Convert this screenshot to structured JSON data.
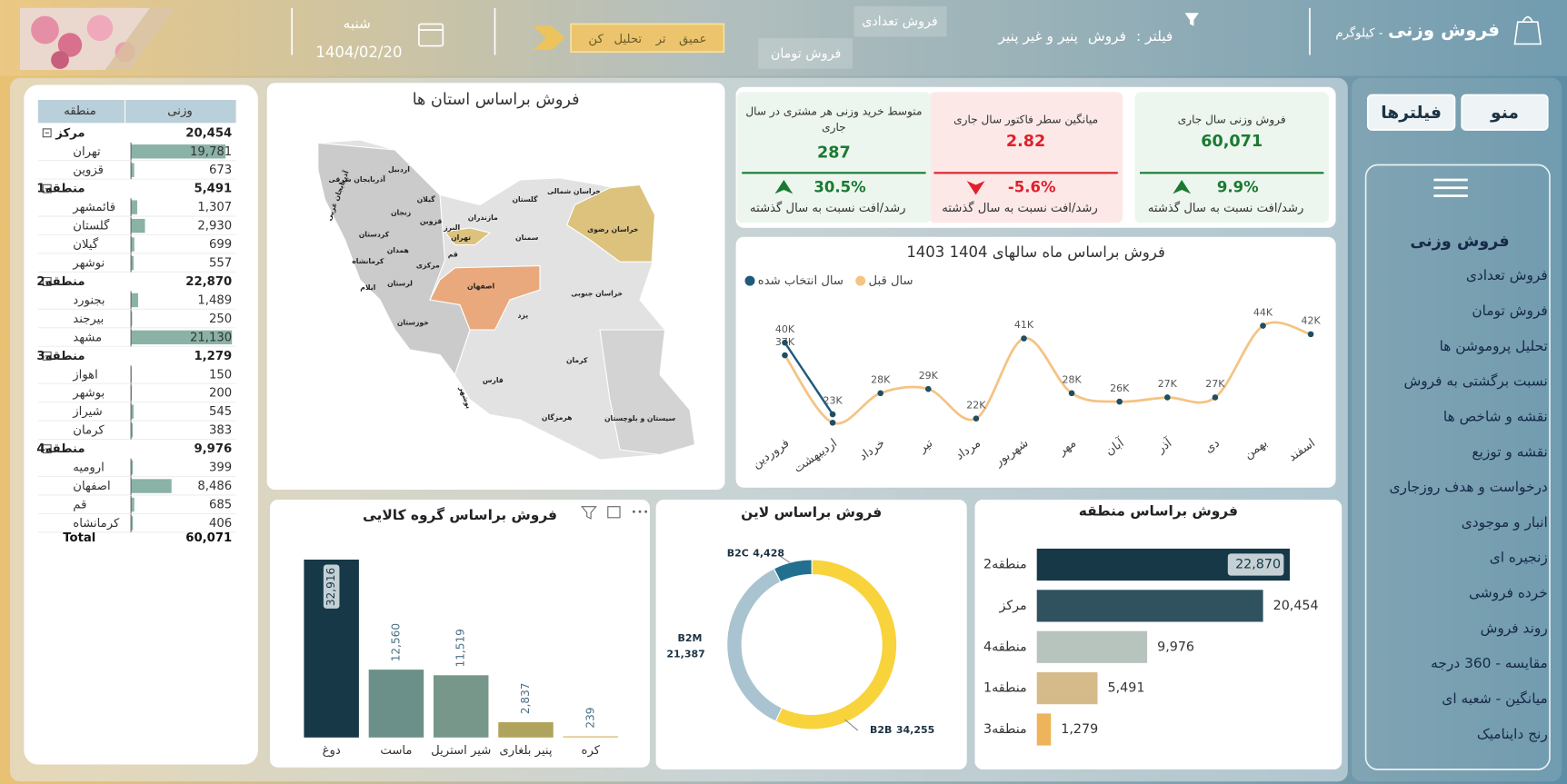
{
  "header": {
    "title": "فروش وزنی",
    "unit": "- کیلوگرم",
    "filter_label": "فیلتر :",
    "filter_values": [
      "فروش",
      "پنیر و غیر پنیر"
    ],
    "buttons": [
      "فروش تعدادی",
      "فروش تومان"
    ],
    "analysis": [
      "عمیق",
      "تر",
      "تحلیل",
      "کن"
    ],
    "weekday": "شنبه",
    "date": "1404/02/20"
  },
  "sidebar": {
    "buttons": [
      "منو",
      "فیلترها"
    ],
    "heading": "فروش وزنی",
    "items": [
      "فروش تعدادی",
      "فروش تومان",
      "تحلیل پروموشن ها",
      "نسبت برگشتی به فروش",
      "نقشه و شاخص ها",
      "نقشه و توزیع",
      "درخواست و هدف روزجاری",
      "انبار و موجودی",
      "زنجیره ای",
      "خرده فروشی",
      "روند فروش",
      "مقایسه - 360 درجه",
      "میانگین - شعبه ای",
      "رنج داینامیک"
    ]
  },
  "kpis": [
    {
      "title": "فروش وزنی سال جاری",
      "value": "60,071",
      "change": "9.9%",
      "footer": "رشد/افت نسبت به سال گذشته",
      "trend": "up",
      "color": "#1a7a32"
    },
    {
      "title": "میانگین سطر فاکتور سال جاری",
      "value": "2.82",
      "change": "-5.6%",
      "footer": "رشد/افت نسبت به سال گذشته",
      "trend": "down",
      "color": "#e0202a"
    },
    {
      "title": "متوسط خرید وزنی هر مشتری در سال جاری",
      "value": "287",
      "change": "30.5%",
      "footer": "رشد/افت نسبت به سال گذشته",
      "trend": "up",
      "color": "#1a7a32"
    }
  ],
  "table": {
    "headers": [
      "وزنی",
      "منطقه"
    ],
    "rows": [
      {
        "name": "مرکز",
        "level": 0,
        "value": {
          "value": 20454,
          "label": "20,454"
        }
      },
      {
        "name": "تهران",
        "level": 1,
        "value": {
          "value": 19781,
          "label": "19,781"
        }
      },
      {
        "name": "قزوین",
        "level": 1,
        "value": {
          "value": 673,
          "label": "673"
        }
      },
      {
        "name": "منطقه1",
        "level": 0,
        "value": {
          "value": 5491,
          "label": "5,491"
        }
      },
      {
        "name": "قائمشهر",
        "level": 1,
        "value": {
          "value": 1307,
          "label": "1,307"
        }
      },
      {
        "name": "گلستان",
        "level": 1,
        "value": {
          "value": 2930,
          "label": "2,930"
        }
      },
      {
        "name": "گیلان",
        "level": 1,
        "value": {
          "value": 699,
          "label": "699"
        }
      },
      {
        "name": "نوشهر",
        "level": 1,
        "value": {
          "value": 557,
          "label": "557"
        }
      },
      {
        "name": "منطقه2",
        "level": 0,
        "value": {
          "value": 22870,
          "label": "22,870"
        }
      },
      {
        "name": "بجنورد",
        "level": 1,
        "value": {
          "value": 1489,
          "label": "1,489"
        }
      },
      {
        "name": "بیرجند",
        "level": 1,
        "value": {
          "value": 250,
          "label": "250"
        }
      },
      {
        "name": "مشهد",
        "level": 1,
        "value": {
          "value": 21130,
          "label": "21,130"
        }
      },
      {
        "name": "منطقه3",
        "level": 0,
        "value": {
          "value": 1279,
          "label": "1,279"
        }
      },
      {
        "name": "اهواز",
        "level": 1,
        "value": {
          "value": 150,
          "label": "150"
        }
      },
      {
        "name": "بوشهر",
        "level": 1,
        "value": {
          "value": 200,
          "label": "200"
        }
      },
      {
        "name": "شیراز",
        "level": 1,
        "value": {
          "value": 545,
          "label": "545"
        }
      },
      {
        "name": "کرمان",
        "level": 1,
        "value": {
          "value": 383,
          "label": "383"
        }
      },
      {
        "name": "منطقه4",
        "level": 0,
        "value": {
          "value": 9976,
          "label": "9,976"
        }
      },
      {
        "name": "ارومیه",
        "level": 1,
        "value": {
          "value": 399,
          "label": "399"
        }
      },
      {
        "name": "اصفهان",
        "level": 1,
        "value": {
          "value": 8486,
          "label": "8,486"
        }
      },
      {
        "name": "قم",
        "level": 1,
        "value": {
          "value": 685,
          "label": "685"
        }
      },
      {
        "name": "کرمانشاه",
        "level": 1,
        "value": {
          "value": 406,
          "label": "406"
        }
      }
    ],
    "total": {
      "name": "Total",
      "value": {
        "value": 60071,
        "label": "60,071"
      }
    }
  },
  "map": {
    "title": "فروش براساس استان ها",
    "provinces": [
      "آذربایجان شرقی",
      "آذربایجان غربی",
      "اردبیل",
      "گیلان",
      "مازندران",
      "گلستان",
      "خراسان شمالی",
      "خراسان رضوی",
      "زنجان",
      "قزوین",
      "البرز",
      "تهران",
      "سمنان",
      "کردستان",
      "همدان",
      "قم",
      "مرکزی",
      "کرمانشاه",
      "ایلام",
      "لرستان",
      "اصفهان",
      "خراسان جنوبی",
      "یزد",
      "خوزستان",
      "فارس",
      "بوشهر",
      "کرمان",
      "هرمزگان",
      "سیستان و بلوچستان"
    ]
  },
  "chart_data": [
    {
      "type": "line",
      "title": "فروش براساس ماه سالهای 1404 1403",
      "categories": [
        "فروردین",
        "اردیبهشت",
        "خرداد",
        "تیر",
        "مرداد",
        "شهریور",
        "مهر",
        "آبان",
        "آذر",
        "دی",
        "بهمن",
        "اسفند"
      ],
      "series": [
        {
          "name": "سال انتخاب شده",
          "color": "#1f5a7a",
          "values": [
            40000,
            23000,
            null,
            null,
            null,
            null,
            null,
            null,
            null,
            null,
            null,
            null
          ],
          "value_labels": [
            "40K",
            "23K",
            null,
            null,
            null,
            null,
            null,
            null,
            null,
            null,
            null,
            null
          ]
        },
        {
          "name": "سال قبل",
          "color": "#f5c383",
          "values": [
            37000,
            21000,
            28000,
            29000,
            22000,
            41000,
            28000,
            26000,
            27000,
            27000,
            44000,
            42000
          ],
          "value_labels": [
            "37K",
            null,
            "28K",
            "29K",
            "22K",
            "41K",
            "28K",
            "26K",
            "27K",
            "27K",
            "44K",
            "42K"
          ]
        }
      ],
      "legend": "top-left"
    },
    {
      "type": "donut",
      "title": "فروش براساس لاین",
      "categories": [
        "B2B",
        "B2M",
        "B2C"
      ],
      "values": [
        34255,
        21387,
        4428
      ],
      "value_labels": [
        "34,255",
        "21,387",
        "4,428"
      ],
      "colors": [
        "#f9d33c",
        "#a9c4d0",
        "#236f90"
      ]
    },
    {
      "type": "hbar",
      "title": "فروش براساس منطقه",
      "categories": [
        "منطقه2",
        "مرکز",
        "منطقه4",
        "منطقه1",
        "منطقه3"
      ],
      "values": [
        22870,
        20454,
        9976,
        5491,
        1279
      ],
      "value_labels": [
        "22,870",
        "20,454",
        "9,976",
        "5,491",
        "1,279"
      ],
      "colors": [
        "#163847",
        "#30525e",
        "#b7c4bd",
        "#d5bb8a",
        "#eeb45c"
      ]
    },
    {
      "type": "bar",
      "title": "فروش براساس گروه کالایی",
      "categories": [
        "دوغ",
        "ماست",
        "شیر استریل",
        "پنیر بلغاری",
        "کره"
      ],
      "values": [
        32916,
        12560,
        11519,
        2837,
        239
      ],
      "value_labels": [
        "32,916",
        "12,560",
        "11,519",
        "2,837",
        "239"
      ],
      "colors": [
        "#163847",
        "#6b9089",
        "#76978a",
        "#b0a35d",
        "#d9c07c"
      ]
    }
  ]
}
